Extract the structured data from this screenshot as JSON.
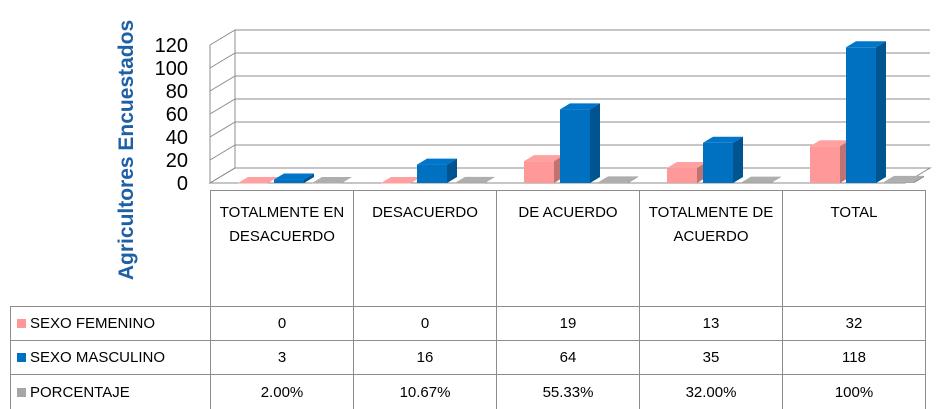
{
  "chart_data": {
    "type": "bar",
    "y_label": "Agricultores Encuestados",
    "categories": [
      "TOTALMENTE EN DESACUERDO",
      "DESACUERDO",
      "DE ACUERDO",
      "TOTALMENTE DE ACUERDO",
      "TOTAL"
    ],
    "series": [
      {
        "name": "SEXO FEMENINO",
        "color": "#ff9999",
        "values": [
          0,
          0,
          19,
          13,
          32
        ]
      },
      {
        "name": "SEXO MASCULINO",
        "color": "#0070c0",
        "values": [
          3,
          16,
          64,
          35,
          118
        ]
      },
      {
        "name": "PORCENTAJE",
        "color": "#a6a6a6",
        "values": [
          0.02,
          0.1067,
          0.5533,
          0.32,
          1
        ],
        "value_labels": [
          "2.00%",
          "10.67%",
          "55.33%",
          "32.00%",
          "100%"
        ]
      }
    ],
    "ylim": [
      0,
      120
    ],
    "yticks": [
      0,
      20,
      40,
      60,
      80,
      100,
      120
    ],
    "grid": true
  }
}
